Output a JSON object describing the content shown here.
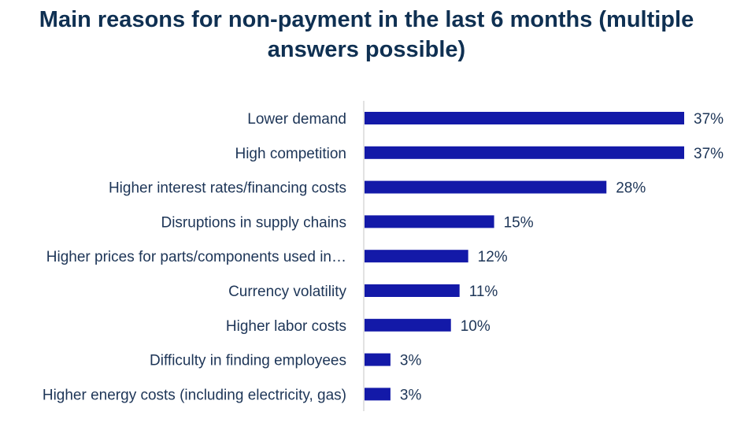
{
  "chart_data": {
    "type": "bar",
    "orientation": "horizontal",
    "title": "Main reasons for non-payment in the last 6 months (multiple answers possible)",
    "categories": [
      "Lower demand",
      "High competition",
      "Higher interest rates/financing costs",
      "Disruptions in supply chains",
      "Higher prices for parts/components used in…",
      "Currency volatility",
      "Higher labor costs",
      "Difficulty in finding employees",
      "Higher energy costs (including electricity, gas)"
    ],
    "values": [
      37,
      37,
      28,
      15,
      12,
      11,
      10,
      3,
      3
    ],
    "data_labels": [
      "37%",
      "37%",
      "28%",
      "15%",
      "12%",
      "11%",
      "10%",
      "3%",
      "3%"
    ],
    "unit": "%",
    "xlim": [
      0,
      37
    ],
    "grid": false,
    "legend": "none",
    "colors": {
      "bar": "#1319a8",
      "title": "#0f3052",
      "text": "#1d3557",
      "axis": "#d9d9d9"
    }
  }
}
